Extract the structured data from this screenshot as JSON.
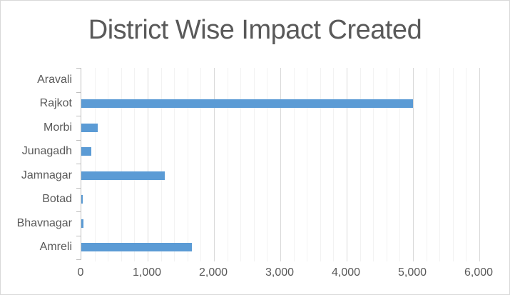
{
  "chart_data": {
    "type": "bar",
    "orientation": "horizontal",
    "title": "District Wise Impact Created",
    "categories": [
      "Aravali",
      "Rajkot",
      "Morbi",
      "Junagadh",
      "Jamnagar",
      "Botad",
      "Bhavnagar",
      "Amreli"
    ],
    "values": [
      0,
      5000,
      250,
      150,
      1260,
      25,
      35,
      1665
    ],
    "xlabel": "",
    "ylabel": "",
    "xlim": [
      0,
      6000
    ],
    "x_major_unit": 1000,
    "x_minor_unit": 200,
    "x_major_ticks": [
      0,
      1000,
      2000,
      3000,
      4000,
      5000,
      6000
    ],
    "x_tick_labels": [
      "0",
      "1,000",
      "2,000",
      "3,000",
      "4,000",
      "5,000",
      "6,000"
    ],
    "grid": "vertical minor and major gridlines on",
    "legend": "none"
  },
  "colors": {
    "bar": "#5B9BD5",
    "title_text": "#595959",
    "axis_text": "#595959",
    "axis_line": "#BFBFBF",
    "major_gridline": "#D9D9D9",
    "minor_gridline": "#F2F2F2",
    "chart_border": "#D9D9D9",
    "background": "#FFFFFF"
  }
}
